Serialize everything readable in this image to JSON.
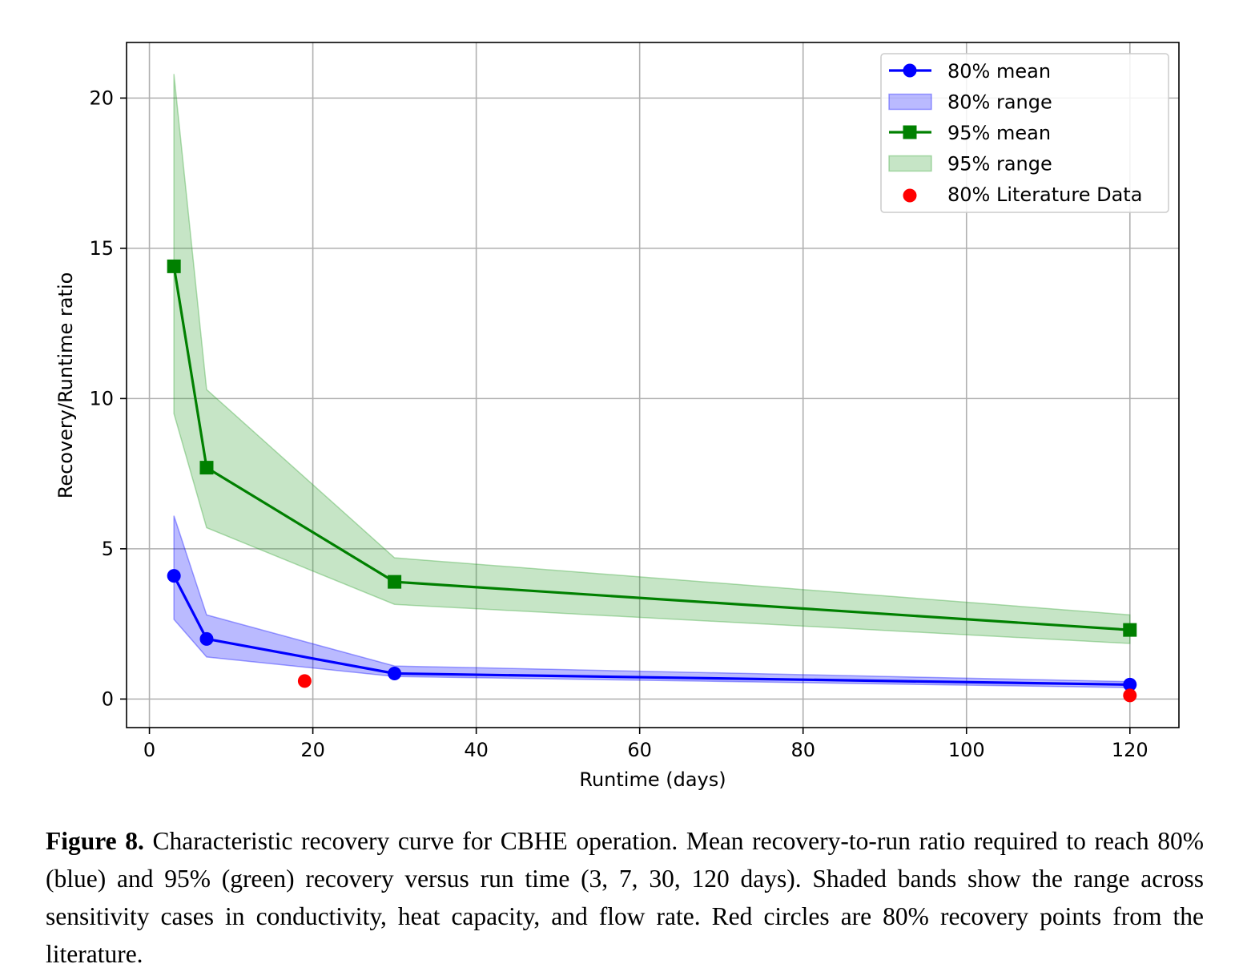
{
  "chart_data": {
    "type": "line",
    "xlabel": "Runtime (days)",
    "ylabel": "Recovery/Runtime ratio",
    "xlim": [
      -2.8,
      126
    ],
    "ylim": [
      -0.95,
      21.85
    ],
    "xticks": [
      0,
      20,
      40,
      60,
      80,
      100,
      120
    ],
    "yticks": [
      0,
      5,
      10,
      15,
      20
    ],
    "grid": true,
    "legend_position": "top-right",
    "x": [
      3,
      7,
      30,
      120
    ],
    "series": [
      {
        "name": "80% mean",
        "kind": "line",
        "marker": "circle",
        "color": "#0000ff",
        "values": [
          4.1,
          2.0,
          0.85,
          0.48
        ]
      },
      {
        "name": "80% range",
        "kind": "band",
        "color": "#0000ff",
        "lower": [
          2.65,
          1.4,
          0.75,
          0.38
        ],
        "upper": [
          6.1,
          2.8,
          1.1,
          0.58
        ]
      },
      {
        "name": "95% mean",
        "kind": "line",
        "marker": "square",
        "color": "#008000",
        "values": [
          14.4,
          7.7,
          3.9,
          2.3
        ]
      },
      {
        "name": "95% range",
        "kind": "band",
        "color": "#2ca02c",
        "lower": [
          9.5,
          5.7,
          3.15,
          1.85
        ],
        "upper": [
          20.8,
          10.3,
          4.7,
          2.8
        ]
      },
      {
        "name": "80% Literature Data",
        "kind": "scatter",
        "marker": "circle",
        "color": "#ff0000",
        "points": [
          [
            19,
            0.6
          ],
          [
            120,
            0.12
          ]
        ]
      }
    ]
  },
  "caption": {
    "label": "Figure 8.",
    "text": "Characteristic recovery curve for CBHE operation. Mean recovery-to-run ratio required to reach 80% (blue) and 95% (green) recovery versus run time (3, 7, 30, 120 days). Shaded bands show the range across sensitivity cases in conductivity, heat capacity, and flow rate. Red circles are 80% recovery points from the literature."
  }
}
